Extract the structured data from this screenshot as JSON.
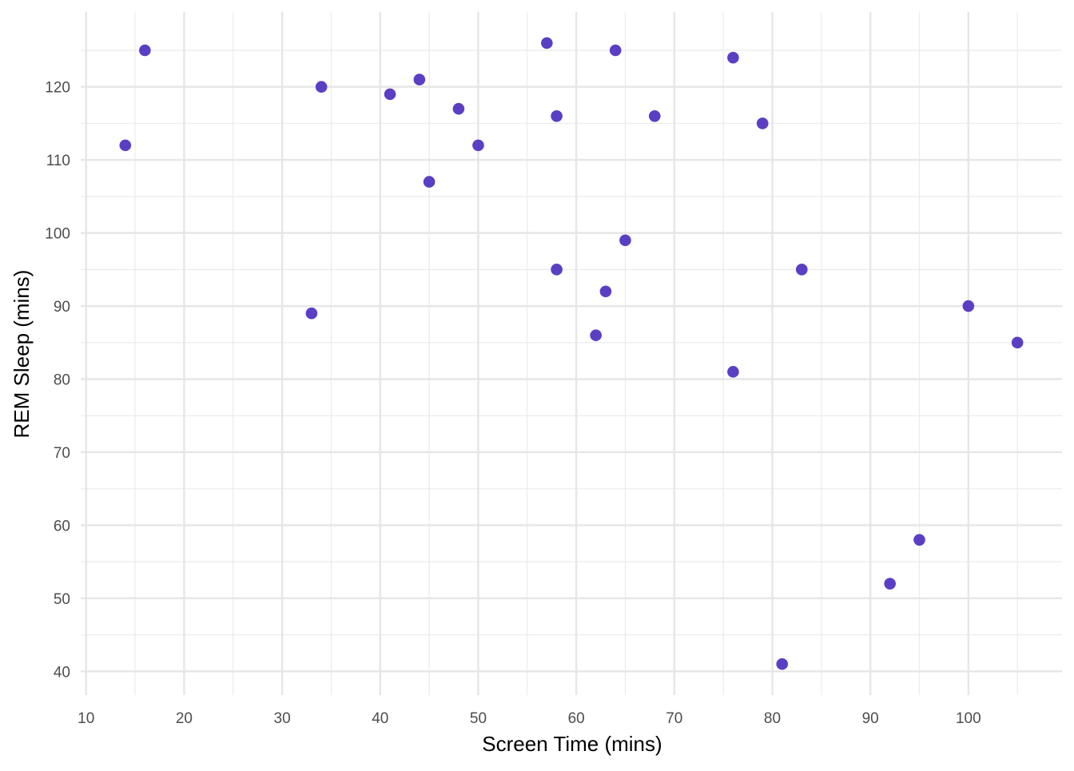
{
  "chart_data": {
    "type": "scatter",
    "title": "",
    "xlabel": "Screen Time (mins)",
    "ylabel": "REM Sleep (mins)",
    "xlim": [
      9.45,
      109.55
    ],
    "ylim": [
      36.75,
      130.25
    ],
    "xticks": [
      10,
      20,
      30,
      40,
      50,
      60,
      70,
      80,
      90,
      100
    ],
    "yticks": [
      40,
      50,
      60,
      70,
      80,
      90,
      100,
      110,
      120
    ],
    "grid": true,
    "point_color": "#5a3fc4",
    "points": [
      {
        "x": 16,
        "y": 125
      },
      {
        "x": 14,
        "y": 112
      },
      {
        "x": 34,
        "y": 120
      },
      {
        "x": 33,
        "y": 89
      },
      {
        "x": 41,
        "y": 119
      },
      {
        "x": 44,
        "y": 121
      },
      {
        "x": 45,
        "y": 107
      },
      {
        "x": 48,
        "y": 117
      },
      {
        "x": 50,
        "y": 112
      },
      {
        "x": 57,
        "y": 126
      },
      {
        "x": 58,
        "y": 116
      },
      {
        "x": 58,
        "y": 95
      },
      {
        "x": 64,
        "y": 125
      },
      {
        "x": 62,
        "y": 86
      },
      {
        "x": 63,
        "y": 92
      },
      {
        "x": 65,
        "y": 99
      },
      {
        "x": 68,
        "y": 116
      },
      {
        "x": 76,
        "y": 124
      },
      {
        "x": 76,
        "y": 81
      },
      {
        "x": 79,
        "y": 115
      },
      {
        "x": 83,
        "y": 95
      },
      {
        "x": 81,
        "y": 41
      },
      {
        "x": 92,
        "y": 52
      },
      {
        "x": 95,
        "y": 58
      },
      {
        "x": 100,
        "y": 90
      },
      {
        "x": 105,
        "y": 85
      }
    ]
  }
}
